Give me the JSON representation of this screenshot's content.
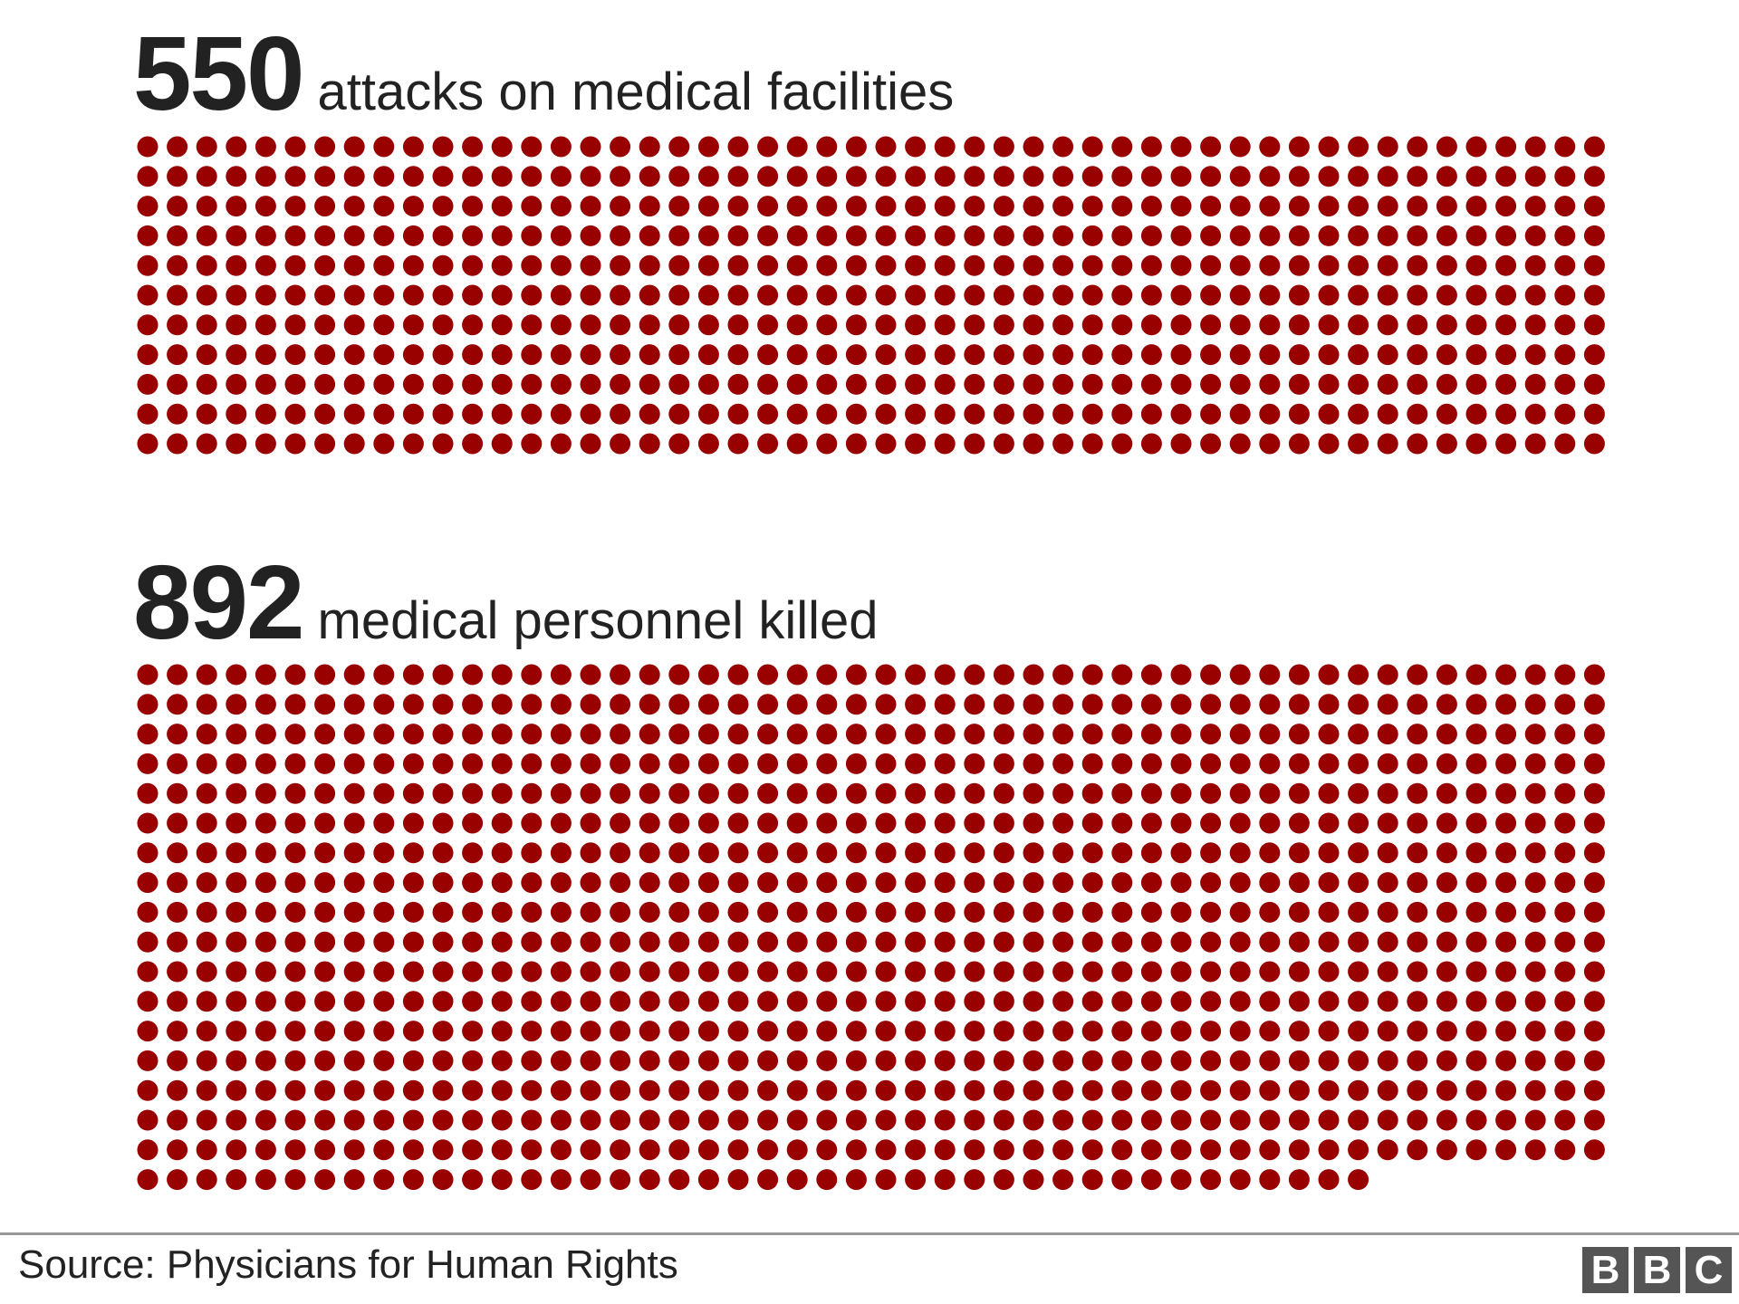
{
  "chart_data": [
    {
      "type": "waffle",
      "value": 550,
      "value_label": "550",
      "label": "attacks on medical facilities",
      "dots_per_row": 50,
      "color": "#990000"
    },
    {
      "type": "waffle",
      "value": 892,
      "value_label": "892",
      "label": "medical personnel killed",
      "dots_per_row": 50,
      "color": "#990000"
    }
  ],
  "footer": {
    "source": "Source: Physicians for Human Rights",
    "logo_letters": [
      "B",
      "B",
      "C"
    ]
  }
}
